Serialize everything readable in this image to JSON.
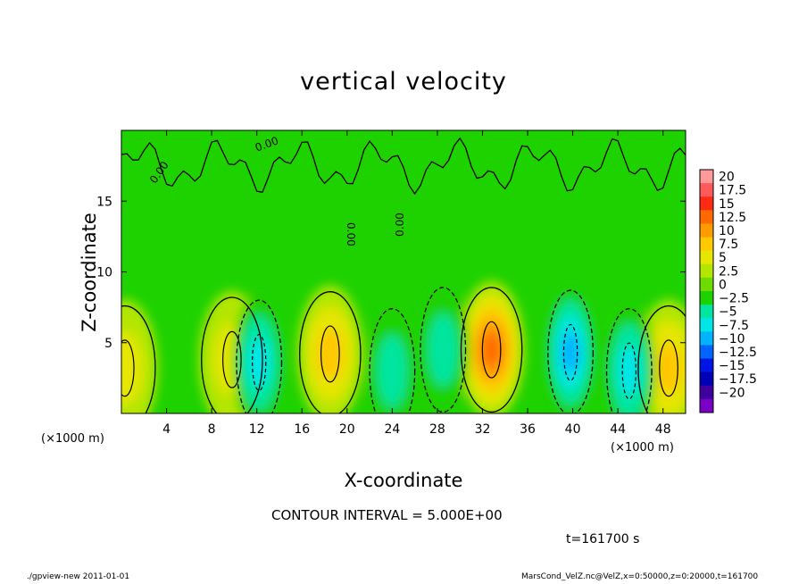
{
  "chart_data": {
    "type": "heatmap",
    "title": "vertical velocity",
    "xlabel": "X-coordinate",
    "ylabel": "Z-coordinate",
    "x_unit": "(×1000 m)",
    "xlim": [
      0,
      50
    ],
    "ylim": [
      0,
      20
    ],
    "x_ticks": [
      "4",
      "8",
      "12",
      "16",
      "20",
      "24",
      "28",
      "32",
      "36",
      "40",
      "44",
      "48"
    ],
    "y_ticks": [
      "5",
      "10",
      "15"
    ],
    "contour_labels": [
      "0.00",
      "0.00",
      "0.00",
      "0.00"
    ],
    "colorbar": {
      "levels": [
        "20",
        "17.5",
        "15",
        "12.5",
        "10",
        "7.5",
        "5",
        "2.5",
        "0",
        "-2.5",
        "-5",
        "-7.5",
        "-10",
        "-12.5",
        "-15",
        "-17.5",
        "-20"
      ],
      "colors": [
        "#ff9a9a",
        "#ff5a5a",
        "#ff2a14",
        "#ff6a00",
        "#ff9a00",
        "#ffc800",
        "#e6e600",
        "#b4e600",
        "#6edc00",
        "#1ed200",
        "#00e6a0",
        "#00e6e6",
        "#00b4ff",
        "#0064ff",
        "#0014e6",
        "#0000b4",
        "#4000a0",
        "#7a00c8"
      ]
    },
    "features": [
      {
        "kind": "updraft",
        "x": 18.5,
        "z": 4.2,
        "peak": 7.5
      },
      {
        "kind": "updraft",
        "x": 32.8,
        "z": 4.5,
        "peak": 12
      },
      {
        "kind": "updraft",
        "x": 48.5,
        "z": 3.2,
        "peak": 7
      },
      {
        "kind": "updraft",
        "x": 9.8,
        "z": 3.8,
        "peak": 5
      },
      {
        "kind": "updraft",
        "x": 0.3,
        "z": 3.2,
        "peak": 5
      },
      {
        "kind": "downdraft",
        "x": 12.2,
        "z": 3.6,
        "peak": -8
      },
      {
        "kind": "downdraft",
        "x": 39.8,
        "z": 4.3,
        "peak": -9
      },
      {
        "kind": "downdraft",
        "x": 45.0,
        "z": 3.0,
        "peak": -8
      },
      {
        "kind": "downdraft",
        "x": 24.0,
        "z": 3.0,
        "peak": -4
      },
      {
        "kind": "downdraft",
        "x": 28.5,
        "z": 4.5,
        "peak": -3
      }
    ]
  },
  "contour_interval": "CONTOUR INTERVAL = 5.000E+00",
  "time_label": "t=161700 s",
  "footer_left": "./gpview-new   2011-01-01",
  "footer_right": "MarsCond_VelZ.nc@VelZ,x=0:50000,z=0:20000,t=161700"
}
